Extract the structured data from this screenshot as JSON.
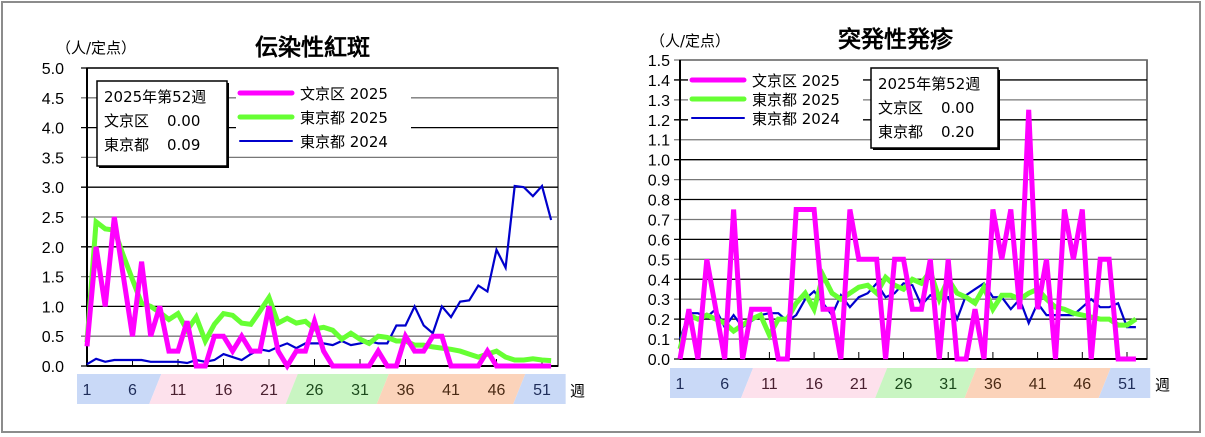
{
  "charts": [
    {
      "title": "伝染性紅斑",
      "unit": "（人/定点）",
      "week_suffix": "週",
      "summary_box": {
        "header": "2025年第52週",
        "rows": [
          {
            "label": "文京区",
            "value": "0.00"
          },
          {
            "label": "東京都",
            "value": "0.09"
          }
        ]
      },
      "legend": [
        {
          "label": "文京区 2025",
          "color": "#ff00ff",
          "width": 5
        },
        {
          "label": "東京都 2025",
          "color": "#66ff33",
          "width": 5
        },
        {
          "label": "東京都 2024",
          "color": "#0000cc",
          "width": 2
        }
      ],
      "y_ticks": [
        "0.0",
        "0.5",
        "1.0",
        "1.5",
        "2.0",
        "2.5",
        "3.0",
        "3.5",
        "4.0",
        "4.5",
        "5.0"
      ],
      "week_bands": [
        {
          "labels": [
            "1",
            "6"
          ],
          "color": "#c9d9f7",
          "text": "#1f2d5a"
        },
        {
          "labels": [
            "11",
            "16",
            "21"
          ],
          "color": "#fde1ec",
          "text": "#4a2030"
        },
        {
          "labels": [
            "26",
            "31"
          ],
          "color": "#c9f5c2",
          "text": "#1c4a1c"
        },
        {
          "labels": [
            "36",
            "41",
            "46"
          ],
          "color": "#fbd3ba",
          "text": "#4a2a14"
        },
        {
          "labels": [
            "51"
          ],
          "color": "#c9d9f7",
          "text": "#1f2d5a"
        }
      ]
    },
    {
      "title": "突発性発疹",
      "unit": "（人/定点）",
      "week_suffix": "週",
      "summary_box": {
        "header": "2025年第52週",
        "rows": [
          {
            "label": "文京区",
            "value": "0.00"
          },
          {
            "label": "東京都",
            "value": "0.20"
          }
        ]
      },
      "legend": [
        {
          "label": "文京区 2025",
          "color": "#ff00ff",
          "width": 5
        },
        {
          "label": "東京都 2025",
          "color": "#66ff33",
          "width": 5
        },
        {
          "label": "東京都 2024",
          "color": "#0000cc",
          "width": 2
        }
      ],
      "y_ticks": [
        "0.0",
        "0.1",
        "0.2",
        "0.3",
        "0.4",
        "0.5",
        "0.6",
        "0.7",
        "0.8",
        "0.9",
        "1.0",
        "1.1",
        "1.2",
        "1.3",
        "1.4",
        "1.5"
      ],
      "week_bands": [
        {
          "labels": [
            "1",
            "6"
          ],
          "color": "#c9d9f7",
          "text": "#1f2d5a"
        },
        {
          "labels": [
            "11",
            "16",
            "21"
          ],
          "color": "#fde1ec",
          "text": "#4a2030"
        },
        {
          "labels": [
            "26",
            "31"
          ],
          "color": "#c9f5c2",
          "text": "#1c4a1c"
        },
        {
          "labels": [
            "36",
            "41",
            "46"
          ],
          "color": "#fbd3ba",
          "text": "#4a2a14"
        },
        {
          "labels": [
            "51"
          ],
          "color": "#c9d9f7",
          "text": "#1f2d5a"
        }
      ]
    }
  ],
  "chart_data": [
    {
      "type": "line",
      "title": "伝染性紅斑",
      "xlabel": "週",
      "ylabel": "人/定点",
      "ylim": [
        0,
        5.0
      ],
      "grid": true,
      "legend_position": "top-left inside",
      "x": [
        1,
        2,
        3,
        4,
        5,
        6,
        7,
        8,
        9,
        10,
        11,
        12,
        13,
        14,
        15,
        16,
        17,
        18,
        19,
        20,
        21,
        22,
        23,
        24,
        25,
        26,
        27,
        28,
        29,
        30,
        31,
        32,
        33,
        34,
        35,
        36,
        37,
        38,
        39,
        40,
        41,
        42,
        43,
        44,
        45,
        46,
        47,
        48,
        49,
        50,
        51,
        52
      ],
      "x_tick_labels": [
        "1",
        "6",
        "11",
        "16",
        "21",
        "26",
        "31",
        "36",
        "41",
        "46",
        "51"
      ],
      "annotations": [
        "2025年第52週",
        "文京区 0.00",
        "東京都 0.09"
      ],
      "series": [
        {
          "name": "文京区 2025",
          "color": "#ff00ff",
          "values": [
            0.33,
            2.0,
            1.0,
            2.5,
            1.5,
            0.5,
            1.75,
            0.5,
            1.0,
            0.25,
            0.25,
            0.75,
            0,
            0,
            0.5,
            0.5,
            0.25,
            0.5,
            0.25,
            0.25,
            1.0,
            0.25,
            0,
            0.25,
            0.25,
            0.75,
            0.25,
            0,
            0,
            0,
            0,
            0,
            0.25,
            0,
            0,
            0.5,
            0.25,
            0.25,
            0.5,
            0.5,
            0,
            0,
            0,
            0,
            0.25,
            0,
            0,
            0,
            0,
            0,
            0,
            0
          ]
        },
        {
          "name": "東京都 2025",
          "color": "#66ff33",
          "values": [
            0.4,
            2.42,
            2.3,
            2.28,
            1.85,
            1.45,
            1.05,
            1.0,
            0.9,
            0.78,
            0.88,
            0.6,
            0.82,
            0.42,
            0.7,
            0.88,
            0.85,
            0.72,
            0.7,
            0.92,
            1.15,
            0.72,
            0.8,
            0.72,
            0.75,
            0.62,
            0.65,
            0.6,
            0.45,
            0.55,
            0.45,
            0.38,
            0.5,
            0.48,
            0.42,
            0.42,
            0.35,
            0.35,
            0.32,
            0.3,
            0.28,
            0.25,
            0.2,
            0.15,
            0.2,
            0.25,
            0.15,
            0.1,
            0.1,
            0.12,
            0.1,
            0.09
          ]
        },
        {
          "name": "東京都 2024",
          "color": "#0000cc",
          "values": [
            0.03,
            0.12,
            0.07,
            0.1,
            0.1,
            0.1,
            0.1,
            0.07,
            0.07,
            0.07,
            0.07,
            0.05,
            0.1,
            0.07,
            0.1,
            0.2,
            0.15,
            0.1,
            0.2,
            0.28,
            0.25,
            0.32,
            0.38,
            0.3,
            0.38,
            0.38,
            0.38,
            0.35,
            0.42,
            0.35,
            0.38,
            0.42,
            0.38,
            0.38,
            0.68,
            0.68,
            1.0,
            0.68,
            0.55,
            1.0,
            0.82,
            1.08,
            1.1,
            1.35,
            1.25,
            1.95,
            1.65,
            3.02,
            3.0,
            2.85,
            3.02,
            2.45
          ]
        }
      ]
    },
    {
      "type": "line",
      "title": "突発性発疹",
      "xlabel": "週",
      "ylabel": "人/定点",
      "ylim": [
        0,
        1.5
      ],
      "grid": true,
      "legend_position": "top-left inside",
      "x": [
        1,
        2,
        3,
        4,
        5,
        6,
        7,
        8,
        9,
        10,
        11,
        12,
        13,
        14,
        15,
        16,
        17,
        18,
        19,
        20,
        21,
        22,
        23,
        24,
        25,
        26,
        27,
        28,
        29,
        30,
        31,
        32,
        33,
        34,
        35,
        36,
        37,
        38,
        39,
        40,
        41,
        42,
        43,
        44,
        45,
        46,
        47,
        48,
        49,
        50,
        51,
        52
      ],
      "x_tick_labels": [
        "1",
        "6",
        "11",
        "16",
        "21",
        "26",
        "31",
        "36",
        "41",
        "46",
        "51"
      ],
      "annotations": [
        "2025年第52週",
        "文京区 0.00",
        "東京都 0.20"
      ],
      "series": [
        {
          "name": "文京区 2025",
          "color": "#ff00ff",
          "values": [
            0,
            0.25,
            0,
            0.5,
            0.25,
            0,
            0.75,
            0,
            0.25,
            0.25,
            0.25,
            0,
            0,
            0.75,
            0.75,
            0.75,
            0.25,
            0.25,
            0,
            0.75,
            0.5,
            0.5,
            0.5,
            0,
            0.5,
            0.5,
            0.25,
            0.25,
            0.5,
            0,
            0.5,
            0,
            0,
            0.25,
            0,
            0.75,
            0.5,
            0.75,
            0.25,
            1.25,
            0.25,
            0.5,
            0,
            0.75,
            0.5,
            0.75,
            0,
            0.5,
            0.5,
            0,
            0,
            0
          ]
        },
        {
          "name": "東京都 2025",
          "color": "#66ff33",
          "values": [
            0.05,
            0.22,
            0.2,
            0.22,
            0.2,
            0.18,
            0.14,
            0.17,
            0.2,
            0.22,
            0.12,
            0.2,
            0.2,
            0.28,
            0.33,
            0.25,
            0.42,
            0.33,
            0.3,
            0.33,
            0.36,
            0.37,
            0.33,
            0.41,
            0.37,
            0.35,
            0.4,
            0.38,
            0.44,
            0.3,
            0.4,
            0.33,
            0.31,
            0.28,
            0.36,
            0.25,
            0.32,
            0.32,
            0.3,
            0.33,
            0.35,
            0.3,
            0.26,
            0.25,
            0.23,
            0.22,
            0.21,
            0.2,
            0.2,
            0.17,
            0.17,
            0.2
          ]
        },
        {
          "name": "東京都 2024",
          "color": "#0000cc",
          "values": [
            0.1,
            0.23,
            0.23,
            0.21,
            0.25,
            0.16,
            0.22,
            0.16,
            0.19,
            0.22,
            0.23,
            0.23,
            0.19,
            0.22,
            0.3,
            0.34,
            0.28,
            0.22,
            0.32,
            0.26,
            0.31,
            0.33,
            0.38,
            0.31,
            0.33,
            0.38,
            0.37,
            0.27,
            0.32,
            0.3,
            0.31,
            0.2,
            0.32,
            0.35,
            0.38,
            0.31,
            0.31,
            0.25,
            0.3,
            0.18,
            0.28,
            0.22,
            0.22,
            0.22,
            0.22,
            0.26,
            0.3,
            0.26,
            0.26,
            0.28,
            0.16,
            0.16
          ]
        }
      ]
    }
  ]
}
